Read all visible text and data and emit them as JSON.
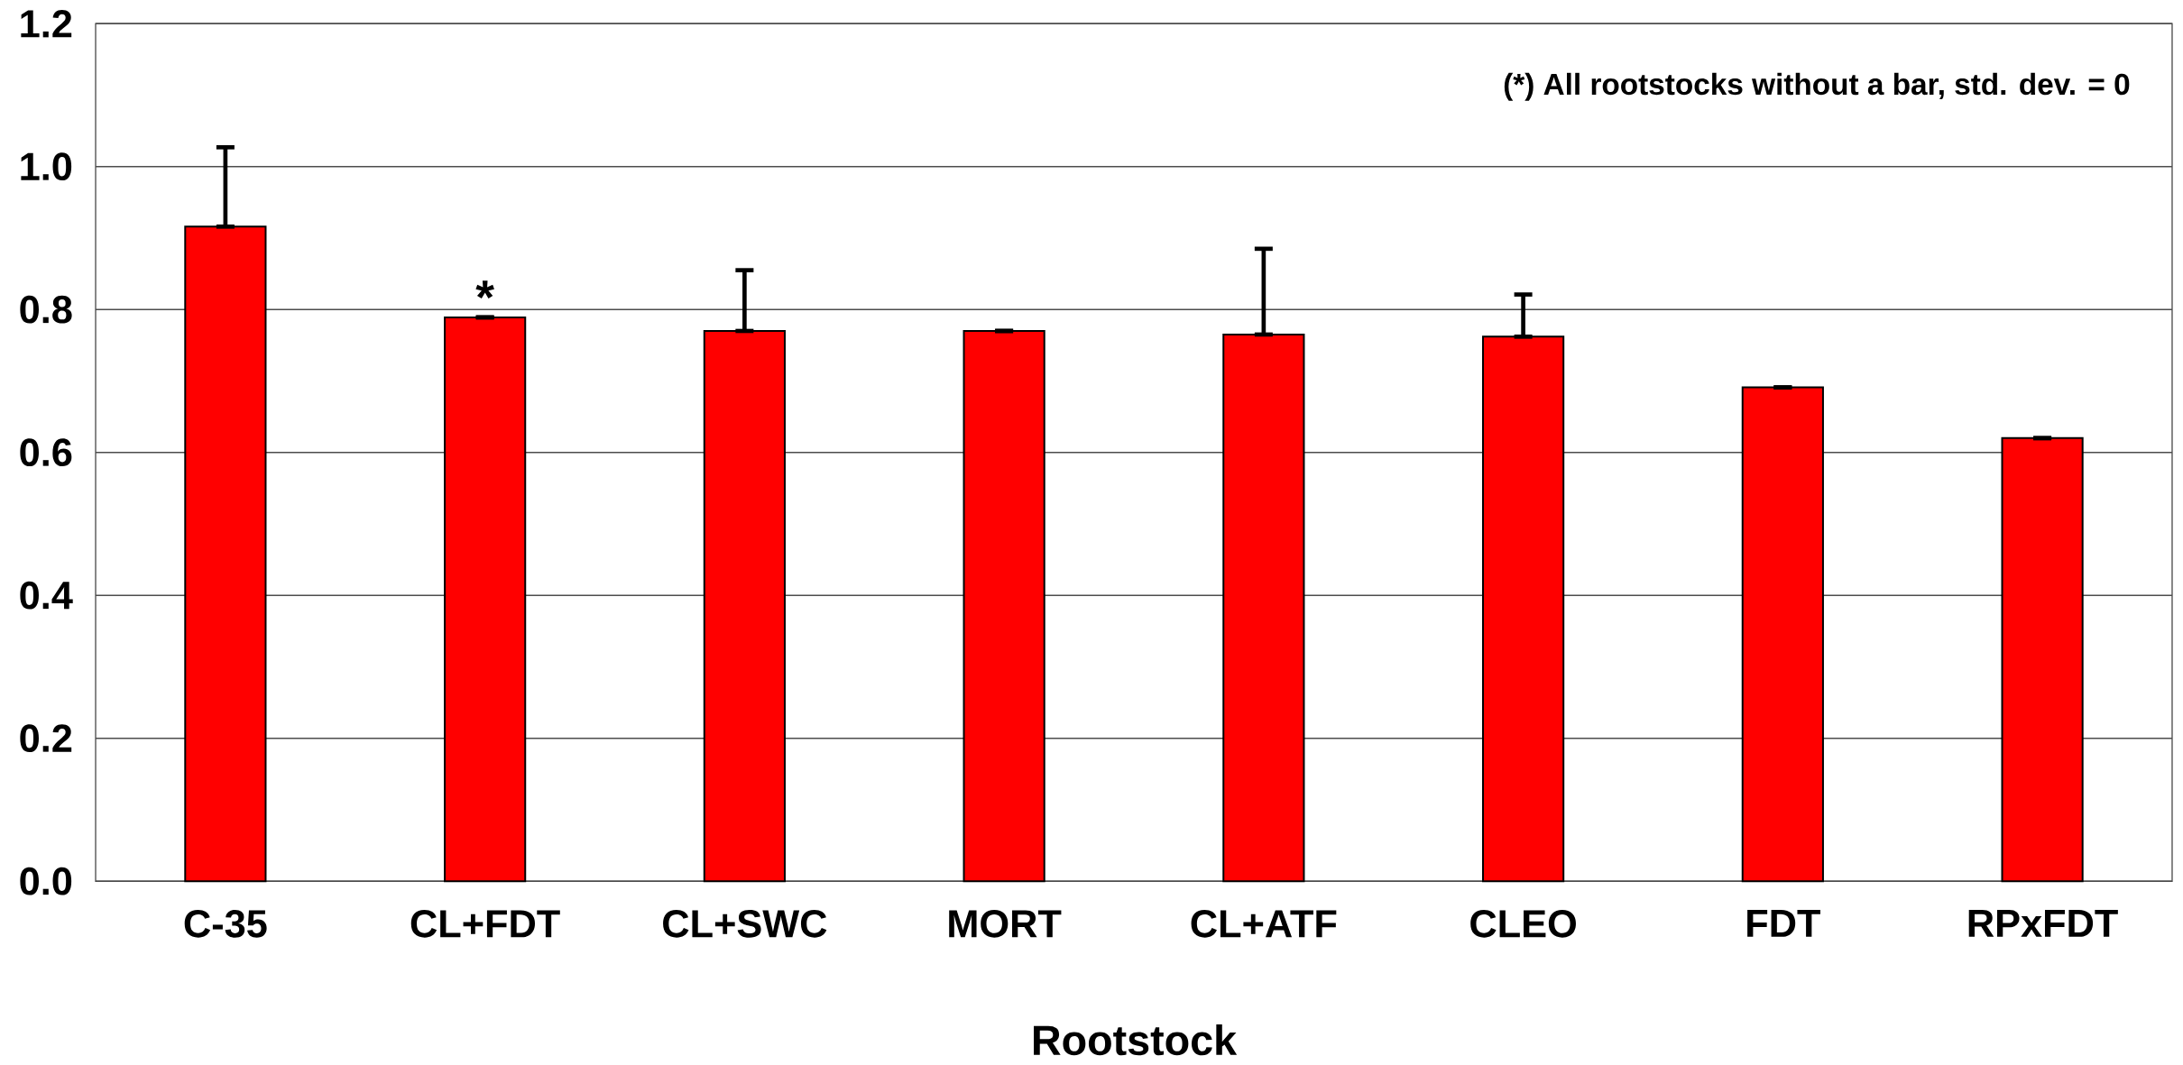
{
  "chart_data": {
    "type": "bar",
    "xlabel": "Rootstock",
    "categories": [
      "C-35",
      "CL+FDT",
      "CL+SWC",
      "MORT",
      "CL+ATF",
      "CLEO",
      "FDT",
      "RPxFDT"
    ],
    "values": [
      0.916,
      0.789,
      0.77,
      0.77,
      0.765,
      0.762,
      0.691,
      0.62
    ],
    "errors": [
      [
        0.916,
        1.027
      ],
      [
        0.789,
        0.789
      ],
      [
        0.77,
        0.855
      ],
      [
        0.77,
        0.77
      ],
      [
        0.765,
        0.885
      ],
      [
        0.762,
        0.821
      ],
      [
        0.691,
        0.691
      ],
      [
        0.62,
        0.62
      ]
    ],
    "color": "#ff0000",
    "ylim": [
      0,
      1.2
    ],
    "yticks": [
      {
        "value": 0,
        "label": "0.0"
      },
      0.2,
      0.4,
      0.6,
      0.8,
      {
        "value": 1,
        "label": "1.0"
      },
      1.2
    ],
    "grid": "y",
    "annotations": [
      "(*) All rootstocks without a bar, std. dev. = 0",
      {
        "text": "*",
        "x": "CL+FDT",
        "y": 0.789
      }
    ]
  }
}
